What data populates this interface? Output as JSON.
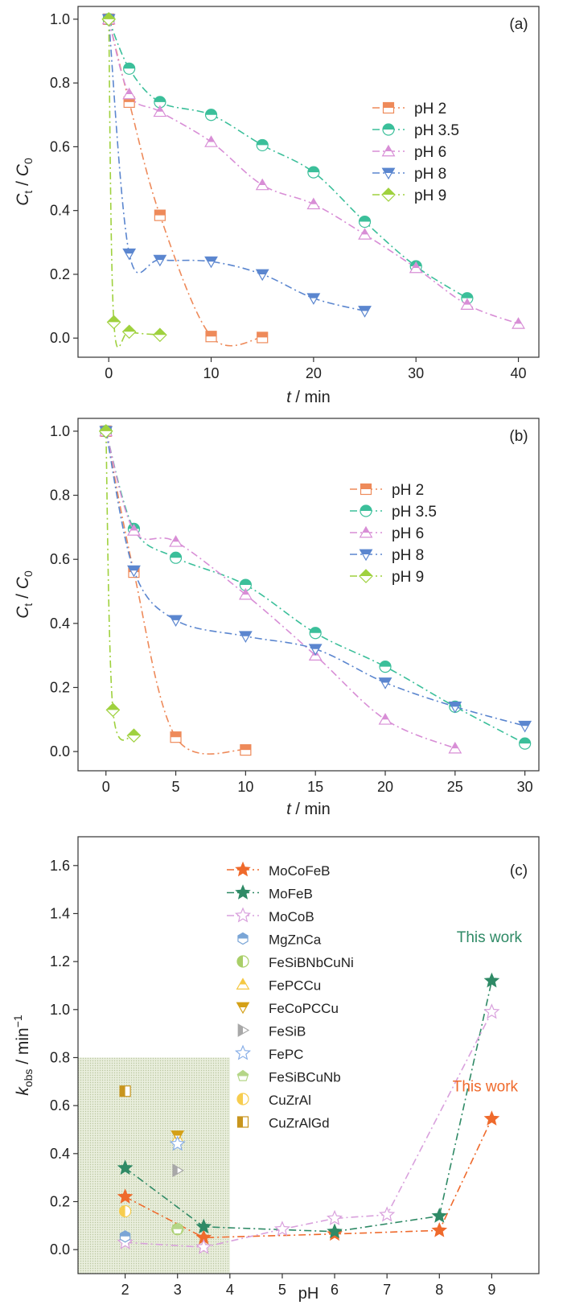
{
  "colors": {
    "pH2": "#ee8a5a",
    "pH3_5": "#3bbf9a",
    "pH6": "#d88ed6",
    "pH8": "#5b86cf",
    "pH9": "#9fd13e",
    "MoCoFeB": "#ef6a2c",
    "MoFeB": "#2f8a66",
    "MoCoB": "#d9a1dd",
    "MgZnCa": "#7aa5d6",
    "FeSiBNbCuNi": "#a9cf68",
    "FePCCu": "#f5c842",
    "FeCoPCCu": "#d4a017",
    "FeSiB": "#a8a8a8",
    "FePC": "#8ab0e8",
    "FeSiBCuNb": "#b5d688",
    "CuZrAl": "#f7cd4f",
    "CuZrAlGd": "#c8951e",
    "shade": "#e9eedc"
  },
  "chart_data": [
    {
      "type": "line",
      "panel_label": "(a)",
      "xlabel": "t / min",
      "ylabel": "Ct / C0",
      "xlim": [
        -3,
        42
      ],
      "ylim": [
        -0.06,
        1.04
      ],
      "xticks": [
        0,
        10,
        20,
        30,
        40
      ],
      "yticks": [
        0.0,
        0.2,
        0.4,
        0.6,
        0.8,
        1.0
      ],
      "legend_position": "upper-right",
      "series": [
        {
          "name": "pH 2",
          "marker": "square",
          "x": [
            0,
            2,
            5,
            10,
            15
          ],
          "y": [
            1.0,
            0.74,
            0.385,
            0.005,
            0.002
          ]
        },
        {
          "name": "pH 3.5",
          "marker": "circle",
          "x": [
            0,
            2,
            5,
            10,
            15,
            20,
            25,
            30,
            35
          ],
          "y": [
            1.0,
            0.845,
            0.74,
            0.7,
            0.605,
            0.52,
            0.365,
            0.225,
            0.125
          ]
        },
        {
          "name": "pH 6",
          "marker": "triangle-up",
          "x": [
            0,
            2,
            5,
            10,
            15,
            20,
            25,
            30,
            35,
            40
          ],
          "y": [
            1.0,
            0.765,
            0.71,
            0.615,
            0.48,
            0.42,
            0.325,
            0.22,
            0.105,
            0.045
          ]
        },
        {
          "name": "pH 8",
          "marker": "triangle-down",
          "x": [
            0,
            2,
            5,
            10,
            15,
            20,
            25
          ],
          "y": [
            1.0,
            0.265,
            0.245,
            0.24,
            0.2,
            0.125,
            0.085
          ]
        },
        {
          "name": "pH 9",
          "marker": "diamond",
          "x": [
            0,
            0.5,
            2,
            5
          ],
          "y": [
            1.0,
            0.05,
            0.02,
            0.01
          ]
        }
      ]
    },
    {
      "type": "line",
      "panel_label": "(b)",
      "xlabel": "t / min",
      "ylabel": "Ct / C0",
      "xlim": [
        -2,
        31
      ],
      "ylim": [
        -0.06,
        1.04
      ],
      "xticks": [
        0,
        5,
        10,
        15,
        20,
        25,
        30
      ],
      "yticks": [
        0.0,
        0.2,
        0.4,
        0.6,
        0.8,
        1.0
      ],
      "legend_position": "upper-right",
      "series": [
        {
          "name": "pH 2",
          "marker": "square",
          "x": [
            0,
            2,
            5,
            10
          ],
          "y": [
            1.0,
            0.56,
            0.045,
            0.005
          ]
        },
        {
          "name": "pH 3.5",
          "marker": "circle",
          "x": [
            0,
            2,
            5,
            10,
            15,
            20,
            25,
            30
          ],
          "y": [
            1.0,
            0.695,
            0.605,
            0.52,
            0.37,
            0.265,
            0.14,
            0.025
          ]
        },
        {
          "name": "pH 6",
          "marker": "triangle-up",
          "x": [
            0,
            2,
            5,
            10,
            15,
            20,
            25
          ],
          "y": [
            1.0,
            0.69,
            0.655,
            0.49,
            0.3,
            0.1,
            0.01
          ]
        },
        {
          "name": "pH 8",
          "marker": "triangle-down",
          "x": [
            0,
            2,
            5,
            10,
            15,
            20,
            25,
            30
          ],
          "y": [
            1.0,
            0.565,
            0.41,
            0.36,
            0.32,
            0.215,
            0.14,
            0.08
          ]
        },
        {
          "name": "pH 9",
          "marker": "diamond",
          "x": [
            0,
            0.5,
            2
          ],
          "y": [
            1.0,
            0.13,
            0.05
          ]
        }
      ]
    },
    {
      "type": "scatter",
      "panel_label": "(c)",
      "xlabel": "pH",
      "ylabel": "kobs / min-1",
      "xlim": [
        1.1,
        9.9
      ],
      "ylim": [
        -0.1,
        1.72
      ],
      "xticks": [
        2,
        3,
        4,
        5,
        6,
        7,
        8,
        9
      ],
      "yticks": [
        0.0,
        0.2,
        0.4,
        0.6,
        0.8,
        1.0,
        1.2,
        1.4,
        1.6
      ],
      "shaded_region": {
        "x": [
          1.1,
          4.0
        ],
        "y": [
          -0.1,
          0.8
        ]
      },
      "legend_position": "upper-center",
      "annotations": [
        "This work",
        "This work"
      ],
      "series": [
        {
          "name": "MoCoFeB",
          "marker": "star",
          "line": true,
          "x": [
            2,
            3.5,
            6,
            8,
            9
          ],
          "y": [
            0.22,
            0.05,
            0.065,
            0.08,
            0.545
          ]
        },
        {
          "name": "MoFeB",
          "marker": "star",
          "line": true,
          "x": [
            2,
            3.5,
            6,
            8,
            9
          ],
          "y": [
            0.34,
            0.095,
            0.075,
            0.14,
            1.12
          ]
        },
        {
          "name": "MoCoB",
          "marker": "star-open",
          "line": true,
          "x": [
            2,
            3.5,
            5,
            6,
            7,
            9
          ],
          "y": [
            0.03,
            0.01,
            0.085,
            0.13,
            0.145,
            0.99
          ]
        },
        {
          "name": "MgZnCa",
          "marker": "hexagon",
          "x": [
            2
          ],
          "y": [
            0.055
          ]
        },
        {
          "name": "FeSiBNbCuNi",
          "marker": "circle-half",
          "x": [
            3
          ],
          "y": [
            0.085
          ]
        },
        {
          "name": "FePCCu",
          "marker": "triangle-up",
          "x": [
            3
          ],
          "y": [
            0.465
          ]
        },
        {
          "name": "FeCoPCCu",
          "marker": "triangle-down",
          "x": [
            3
          ],
          "y": [
            0.475
          ]
        },
        {
          "name": "FeSiB",
          "marker": "triangle-right",
          "x": [
            3
          ],
          "y": [
            0.33
          ]
        },
        {
          "name": "FePC",
          "marker": "star-open",
          "x": [
            3
          ],
          "y": [
            0.44
          ]
        },
        {
          "name": "FeSiBCuNb",
          "marker": "pentagon",
          "x": [
            3
          ],
          "y": [
            0.085
          ]
        },
        {
          "name": "CuZrAl",
          "marker": "circle-half",
          "x": [
            2
          ],
          "y": [
            0.16
          ]
        },
        {
          "name": "CuZrAlGd",
          "marker": "square-half",
          "x": [
            2
          ],
          "y": [
            0.66
          ]
        }
      ]
    }
  ]
}
